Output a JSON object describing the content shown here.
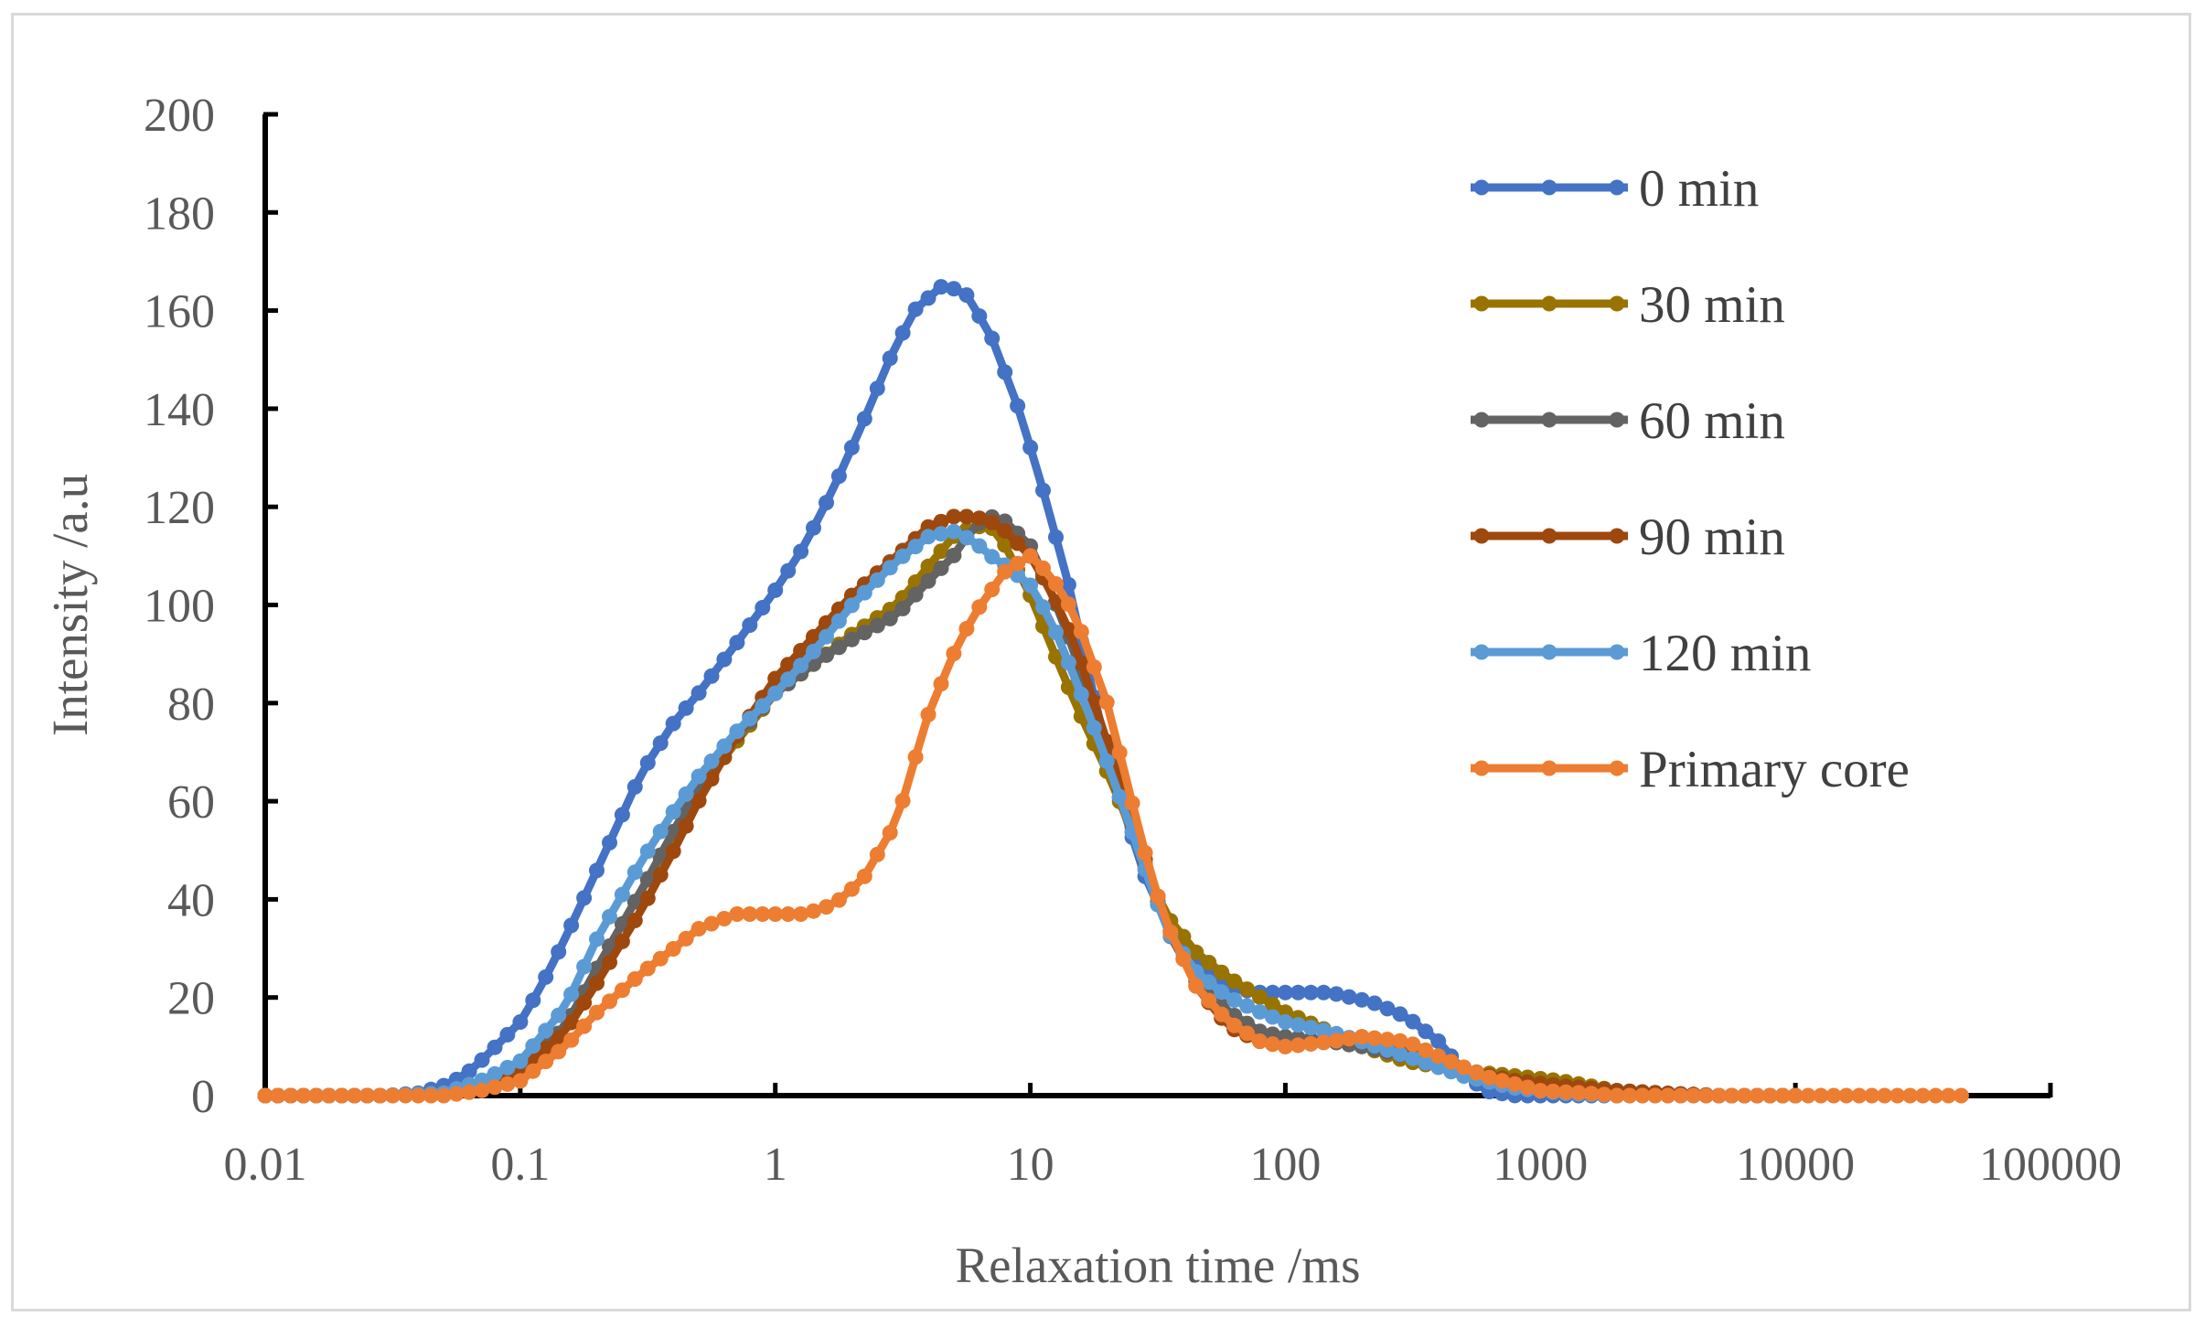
{
  "chart_data": {
    "type": "line",
    "title": "",
    "xlabel": "Relaxation time /ms",
    "ylabel": "Intensity /a.u",
    "x_scale": "log",
    "xlim": [
      0.01,
      100000
    ],
    "ylim": [
      0,
      200
    ],
    "x_ticks": [
      "0.01",
      "0.1",
      "1",
      "10",
      "100",
      "1000",
      "10000",
      "100000"
    ],
    "y_ticks": [
      "0",
      "20",
      "40",
      "60",
      "80",
      "100",
      "120",
      "140",
      "160",
      "180",
      "200"
    ],
    "grid": false,
    "legend_position": "top-right",
    "markers": true,
    "series": [
      {
        "name": "0 min",
        "color": "#4472C4",
        "points": [
          [
            0.01,
            0
          ],
          [
            0.02,
            0
          ],
          [
            0.03,
            0
          ],
          [
            0.04,
            0.5
          ],
          [
            0.05,
            2
          ],
          [
            0.06,
            4
          ],
          [
            0.07,
            7
          ],
          [
            0.08,
            10
          ],
          [
            0.1,
            15
          ],
          [
            0.12,
            22
          ],
          [
            0.15,
            32
          ],
          [
            0.2,
            46
          ],
          [
            0.25,
            57
          ],
          [
            0.3,
            66
          ],
          [
            0.4,
            76
          ],
          [
            0.5,
            82
          ],
          [
            0.7,
            92
          ],
          [
            1,
            103
          ],
          [
            1.3,
            112
          ],
          [
            1.7,
            124
          ],
          [
            2.2,
            137
          ],
          [
            2.8,
            150
          ],
          [
            3.5,
            160
          ],
          [
            4.5,
            165
          ],
          [
            5.5,
            164
          ],
          [
            7,
            155
          ],
          [
            9,
            140
          ],
          [
            11,
            125
          ],
          [
            14,
            105
          ],
          [
            18,
            80
          ],
          [
            22,
            62
          ],
          [
            28,
            45
          ],
          [
            35,
            34
          ],
          [
            45,
            26
          ],
          [
            60,
            22
          ],
          [
            80,
            21
          ],
          [
            100,
            21
          ],
          [
            150,
            21
          ],
          [
            220,
            19
          ],
          [
            300,
            16
          ],
          [
            400,
            11
          ],
          [
            500,
            5
          ],
          [
            600,
            1
          ],
          [
            800,
            0
          ],
          [
            1000,
            0
          ],
          [
            2000,
            0
          ]
        ]
      },
      {
        "name": "30 min",
        "color": "#997300",
        "points": [
          [
            0.01,
            0
          ],
          [
            0.03,
            0
          ],
          [
            0.05,
            0.5
          ],
          [
            0.07,
            2
          ],
          [
            0.1,
            5
          ],
          [
            0.15,
            14
          ],
          [
            0.2,
            26
          ],
          [
            0.3,
            42
          ],
          [
            0.4,
            53
          ],
          [
            0.5,
            62
          ],
          [
            0.7,
            72
          ],
          [
            1,
            82
          ],
          [
            1.5,
            89
          ],
          [
            2,
            94
          ],
          [
            3,
            100
          ],
          [
            4,
            108
          ],
          [
            5,
            114
          ],
          [
            6,
            116
          ],
          [
            7,
            116
          ],
          [
            8,
            112
          ],
          [
            10,
            102
          ],
          [
            12,
            92
          ],
          [
            15,
            80
          ],
          [
            20,
            66
          ],
          [
            25,
            54
          ],
          [
            30,
            43
          ],
          [
            35,
            36
          ],
          [
            45,
            29
          ],
          [
            60,
            24
          ],
          [
            80,
            20
          ],
          [
            100,
            17
          ],
          [
            150,
            13
          ],
          [
            200,
            10
          ],
          [
            300,
            7
          ],
          [
            500,
            5
          ],
          [
            800,
            4
          ],
          [
            1200,
            3
          ],
          [
            2000,
            1
          ],
          [
            3000,
            0.5
          ],
          [
            5000,
            0
          ],
          [
            10000,
            0
          ]
        ]
      },
      {
        "name": "60 min",
        "color": "#636363",
        "points": [
          [
            0.01,
            0
          ],
          [
            0.03,
            0
          ],
          [
            0.05,
            0.5
          ],
          [
            0.07,
            2
          ],
          [
            0.1,
            5
          ],
          [
            0.15,
            14
          ],
          [
            0.2,
            26
          ],
          [
            0.3,
            42
          ],
          [
            0.4,
            54
          ],
          [
            0.5,
            63
          ],
          [
            0.7,
            73
          ],
          [
            1,
            82
          ],
          [
            1.5,
            89
          ],
          [
            2,
            93
          ],
          [
            3,
            98
          ],
          [
            4,
            105
          ],
          [
            5,
            110
          ],
          [
            6,
            116
          ],
          [
            7,
            118
          ],
          [
            8,
            117
          ],
          [
            10,
            112
          ],
          [
            12,
            103
          ],
          [
            15,
            90
          ],
          [
            20,
            70
          ],
          [
            25,
            55
          ],
          [
            30,
            43
          ],
          [
            35,
            33
          ],
          [
            45,
            23
          ],
          [
            60,
            17
          ],
          [
            80,
            13
          ],
          [
            100,
            12
          ],
          [
            150,
            11
          ],
          [
            200,
            10
          ],
          [
            300,
            8
          ],
          [
            500,
            5
          ],
          [
            800,
            3
          ],
          [
            1200,
            2
          ],
          [
            2000,
            1
          ],
          [
            3000,
            0.5
          ],
          [
            5000,
            0
          ],
          [
            10000,
            0
          ]
        ]
      },
      {
        "name": "90 min",
        "color": "#9E480E",
        "points": [
          [
            0.01,
            0
          ],
          [
            0.03,
            0
          ],
          [
            0.05,
            0.5
          ],
          [
            0.07,
            2
          ],
          [
            0.1,
            5
          ],
          [
            0.15,
            13
          ],
          [
            0.2,
            23
          ],
          [
            0.3,
            38
          ],
          [
            0.4,
            50
          ],
          [
            0.5,
            60
          ],
          [
            0.7,
            73
          ],
          [
            1,
            85
          ],
          [
            1.5,
            95
          ],
          [
            2,
            102
          ],
          [
            3,
            110
          ],
          [
            4,
            116
          ],
          [
            5,
            118
          ],
          [
            6,
            118
          ],
          [
            7,
            117
          ],
          [
            8,
            115
          ],
          [
            10,
            110
          ],
          [
            12,
            103
          ],
          [
            15,
            92
          ],
          [
            20,
            72
          ],
          [
            25,
            56
          ],
          [
            30,
            44
          ],
          [
            35,
            34
          ],
          [
            45,
            22
          ],
          [
            60,
            14
          ],
          [
            80,
            11
          ],
          [
            100,
            10
          ],
          [
            150,
            11
          ],
          [
            200,
            12
          ],
          [
            300,
            10
          ],
          [
            400,
            7
          ],
          [
            500,
            5
          ],
          [
            800,
            3
          ],
          [
            1200,
            2
          ],
          [
            2000,
            1
          ],
          [
            3000,
            0.5
          ],
          [
            5000,
            0
          ],
          [
            10000,
            0
          ]
        ]
      },
      {
        "name": "120 min",
        "color": "#5B9BD5",
        "points": [
          [
            0.01,
            0
          ],
          [
            0.03,
            0
          ],
          [
            0.05,
            0.5
          ],
          [
            0.07,
            3
          ],
          [
            0.1,
            7
          ],
          [
            0.15,
            18
          ],
          [
            0.2,
            32
          ],
          [
            0.3,
            48
          ],
          [
            0.4,
            58
          ],
          [
            0.5,
            65
          ],
          [
            0.7,
            74
          ],
          [
            1,
            82
          ],
          [
            1.5,
            92
          ],
          [
            2,
            100
          ],
          [
            3,
            109
          ],
          [
            4,
            114
          ],
          [
            5,
            115
          ],
          [
            6,
            113
          ],
          [
            7,
            110
          ],
          [
            8,
            108
          ],
          [
            10,
            104
          ],
          [
            12,
            97
          ],
          [
            15,
            85
          ],
          [
            20,
            68
          ],
          [
            25,
            54
          ],
          [
            30,
            42
          ],
          [
            35,
            33
          ],
          [
            45,
            25
          ],
          [
            60,
            20
          ],
          [
            80,
            17
          ],
          [
            100,
            15
          ],
          [
            150,
            13
          ],
          [
            200,
            11
          ],
          [
            300,
            8
          ],
          [
            500,
            4
          ],
          [
            800,
            1.5
          ],
          [
            1200,
            0.5
          ],
          [
            2000,
            0
          ],
          [
            10000,
            0
          ]
        ]
      },
      {
        "name": "Primary core",
        "color": "#ED7D31",
        "points": [
          [
            0.01,
            0
          ],
          [
            0.03,
            0
          ],
          [
            0.05,
            0
          ],
          [
            0.07,
            1
          ],
          [
            0.1,
            3
          ],
          [
            0.15,
            10
          ],
          [
            0.2,
            17
          ],
          [
            0.3,
            25
          ],
          [
            0.4,
            30
          ],
          [
            0.5,
            34
          ],
          [
            0.7,
            37
          ],
          [
            1,
            37
          ],
          [
            1.3,
            37
          ],
          [
            1.7,
            39
          ],
          [
            2.2,
            44
          ],
          [
            3,
            56
          ],
          [
            3.5,
            68
          ],
          [
            4,
            78
          ],
          [
            5,
            90
          ],
          [
            6,
            98
          ],
          [
            8,
            107
          ],
          [
            10,
            110
          ],
          [
            12,
            106
          ],
          [
            15,
            98
          ],
          [
            20,
            80
          ],
          [
            25,
            60
          ],
          [
            30,
            44
          ],
          [
            35,
            34
          ],
          [
            45,
            22
          ],
          [
            60,
            15
          ],
          [
            80,
            11
          ],
          [
            100,
            10
          ],
          [
            150,
            11
          ],
          [
            200,
            12
          ],
          [
            300,
            11
          ],
          [
            400,
            8
          ],
          [
            600,
            4
          ],
          [
            1000,
            1
          ],
          [
            1500,
            0.5
          ],
          [
            2000,
            0
          ],
          [
            5000,
            0
          ],
          [
            10000,
            0
          ],
          [
            50000,
            0
          ]
        ]
      }
    ]
  }
}
